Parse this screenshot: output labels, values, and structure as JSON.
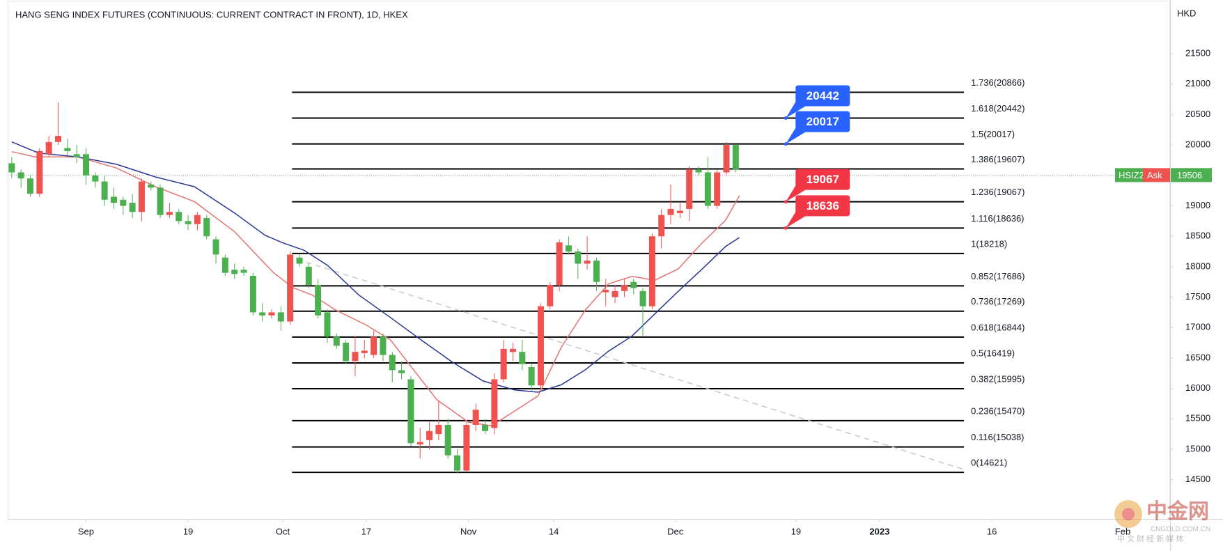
{
  "chart_data": {
    "type": "candlestick",
    "title": "HANG SENG INDEX FUTURES (CONTINUOUS: CURRENT CONTRACT IN FRONT), 1D, HKEX",
    "currency": "HKD",
    "up_color": "#ef5350",
    "down_color": "#4caf50",
    "open": [
      19700,
      19550,
      19450,
      19200,
      19850,
      20050,
      19950,
      19850,
      19850,
      19500,
      19400,
      19150,
      19100,
      19050,
      18900,
      19350,
      19300,
      18850,
      18900,
      18750,
      18700,
      18800,
      18450,
      18150,
      17950,
      17950,
      17850,
      17250,
      17200,
      17250,
      17100,
      18150,
      18000,
      17700,
      17250,
      16850,
      16750,
      16450,
      16580,
      16550,
      16850,
      16550,
      16300,
      16150,
      15080,
      15150,
      15250,
      15400,
      14900,
      14650,
      15400,
      15400,
      15350,
      16150,
      16600,
      16600,
      16350,
      16050,
      17350,
      17700,
      18350,
      18250,
      18050,
      18100,
      17580,
      17500,
      17600,
      17750,
      17600,
      17350,
      18500,
      18850,
      18880,
      18950,
      19600,
      19550,
      19000,
      19550,
      20000
    ],
    "high": [
      19800,
      19600,
      19500,
      19950,
      20150,
      20700,
      20100,
      20000,
      19950,
      19550,
      19500,
      19300,
      19150,
      19200,
      19450,
      19400,
      19350,
      19050,
      18950,
      18850,
      18900,
      18850,
      18500,
      18200,
      18050,
      18000,
      17900,
      17400,
      17300,
      17350,
      18250,
      18200,
      18050,
      17800,
      17300,
      16900,
      16800,
      16850,
      16800,
      16950,
      16900,
      16600,
      16450,
      16200,
      15350,
      15450,
      15800,
      15500,
      15000,
      15450,
      15750,
      15500,
      16250,
      16800,
      16750,
      16800,
      16400,
      17400,
      17750,
      18450,
      18500,
      18300,
      18500,
      18150,
      17800,
      17700,
      17800,
      17800,
      17650,
      18550,
      18950,
      19350,
      19050,
      19650,
      19650,
      19800,
      19600,
      20050,
      20000
    ],
    "low": [
      19450,
      19300,
      19150,
      19150,
      19800,
      20000,
      19800,
      19700,
      19350,
      19300,
      19000,
      18950,
      18850,
      18800,
      18750,
      19250,
      18800,
      18800,
      18700,
      18600,
      18600,
      18450,
      18050,
      17850,
      17800,
      17850,
      17200,
      17100,
      17150,
      16950,
      17050,
      18000,
      17650,
      17150,
      16750,
      16650,
      16400,
      16200,
      16500,
      16500,
      16450,
      16100,
      16150,
      15050,
      14850,
      15000,
      15150,
      14850,
      14600,
      14621,
      15300,
      15250,
      15250,
      16100,
      16450,
      16300,
      15950,
      15950,
      17300,
      17600,
      18200,
      17800,
      17950,
      17600,
      17350,
      17400,
      17500,
      17550,
      16850,
      17300,
      18300,
      18700,
      18800,
      18750,
      19500,
      18950,
      18950,
      19500,
      19550
    ],
    "close": [
      19550,
      19450,
      19200,
      19900,
      20050,
      20150,
      19900,
      19800,
      19500,
      19400,
      19100,
      19050,
      19000,
      18900,
      19400,
      19300,
      18850,
      18900,
      18750,
      18700,
      18850,
      18500,
      18200,
      17900,
      17880,
      17900,
      17250,
      17200,
      17250,
      17100,
      18200,
      18050,
      17700,
      17200,
      16850,
      16700,
      16450,
      16600,
      16620,
      16850,
      16550,
      16300,
      16250,
      15100,
      15120,
      15300,
      15400,
      14900,
      14650,
      15400,
      15650,
      15300,
      16150,
      16650,
      16650,
      16400,
      16050,
      17350,
      17700,
      18400,
      18250,
      18050,
      18100,
      17750,
      17620,
      17600,
      17700,
      17650,
      17350,
      18500,
      18850,
      18950,
      18920,
      19600,
      19550,
      19000,
      19550,
      20000,
      19600
    ],
    "series": [
      {
        "color": "#e57373",
        "x": [
          0,
          2.5,
          7.1,
          11.3,
          15.5,
          19.7,
          24,
          28.2,
          30.3,
          32.4,
          34.9,
          38.2,
          40.8,
          43.3,
          45.8,
          49.2,
          51.7,
          54.2,
          56.7,
          59.2,
          61.8,
          64.3,
          66.8,
          69.3,
          71.8,
          74.4,
          76.9,
          78.4
        ],
        "values": [
          19891,
          19805,
          19805,
          19621,
          19314,
          19068,
          18577,
          17902,
          17656,
          17533,
          17288,
          17042,
          16797,
          16306,
          15815,
          15446,
          15385,
          15630,
          15876,
          16674,
          17288,
          17718,
          17841,
          17779,
          17963,
          18393,
          18762,
          19167
        ]
      },
      {
        "color": "#283593",
        "x": [
          0,
          2.9,
          7.1,
          11.3,
          15.5,
          19.7,
          24,
          27.3,
          29.2,
          31.5,
          34,
          37.4,
          40.8,
          44.1,
          47.5,
          50.8,
          54.2,
          56.7,
          59.2,
          61.8,
          64.3,
          66.8,
          69.3,
          71.8,
          74.4,
          76.9,
          78.4
        ],
        "values": [
          20051,
          19867,
          19805,
          19683,
          19474,
          19314,
          18884,
          18516,
          18393,
          18270,
          18025,
          17534,
          17165,
          16797,
          16429,
          16122,
          15974,
          15938,
          16060,
          16306,
          16613,
          16858,
          17227,
          17595,
          17963,
          18332,
          18479
        ]
      }
    ],
    "trendline": {
      "color": "#c8c8c8",
      "x": [
        30.7,
        102.5
      ],
      "values": [
        18123,
        14672
      ]
    },
    "fib_x_span": [
      30.2,
      102.6
    ],
    "fib_levels": [
      {
        "value": 20866,
        "label": "1.736(20866)"
      },
      {
        "value": 20442,
        "label": "1.618(20442)"
      },
      {
        "value": 20017,
        "label": "1.5(20017)"
      },
      {
        "value": 19607,
        "label": "1.386(19607)"
      },
      {
        "value": 19067,
        "label": "1.236(19067)"
      },
      {
        "value": 18636,
        "label": "1.116(18636)"
      },
      {
        "value": 18218,
        "label": "1(18218)"
      },
      {
        "value": 17686,
        "label": "0.852(17686)"
      },
      {
        "value": 17269,
        "label": "0.736(17269)"
      },
      {
        "value": 16844,
        "label": "0.618(16844)"
      },
      {
        "value": 16419,
        "label": "0.5(16419)"
      },
      {
        "value": 15995,
        "label": "0.382(15995)"
      },
      {
        "value": 15470,
        "label": "0.236(15470)"
      },
      {
        "value": 15038,
        "label": "0.116(15038)"
      },
      {
        "value": 14621,
        "label": "0(14621)"
      }
    ],
    "callouts": [
      {
        "value": 20442,
        "color": "#2962ff"
      },
      {
        "value": 20017,
        "color": "#2962ff"
      },
      {
        "value": 19067,
        "color": "#f23645"
      },
      {
        "value": 18636,
        "color": "#f23645"
      }
    ],
    "callout_x": 83.4,
    "last_price": 19506,
    "symbol": "HSIZ2",
    "quote_side": "Ask",
    "xlim": [
      -0.44,
      124.8
    ],
    "xticks": [
      {
        "value": 8,
        "label": "Sep"
      },
      {
        "value": 19,
        "label": "19"
      },
      {
        "value": 29.2,
        "label": "Oct"
      },
      {
        "value": 38.2,
        "label": "17"
      },
      {
        "value": 49.2,
        "label": "Nov"
      },
      {
        "value": 58.4,
        "label": "14"
      },
      {
        "value": 71.5,
        "label": "Dec"
      },
      {
        "value": 84.5,
        "label": "19"
      },
      {
        "value": 93.5,
        "label": "2023",
        "bold": true
      },
      {
        "value": 105.6,
        "label": "16"
      },
      {
        "value": 119.7,
        "label": "Feb"
      }
    ],
    "ylim": [
      13855,
      22360
    ],
    "yticks": [
      14500,
      15000,
      15500,
      16000,
      16500,
      17000,
      17500,
      18000,
      18500,
      19000,
      19500,
      20000,
      20500,
      21000,
      21500
    ],
    "watermark": {
      "name": "中金网",
      "site": "CNGOLD.COM.CN",
      "tagline": "中 文 财 经 新 媒 体"
    }
  }
}
